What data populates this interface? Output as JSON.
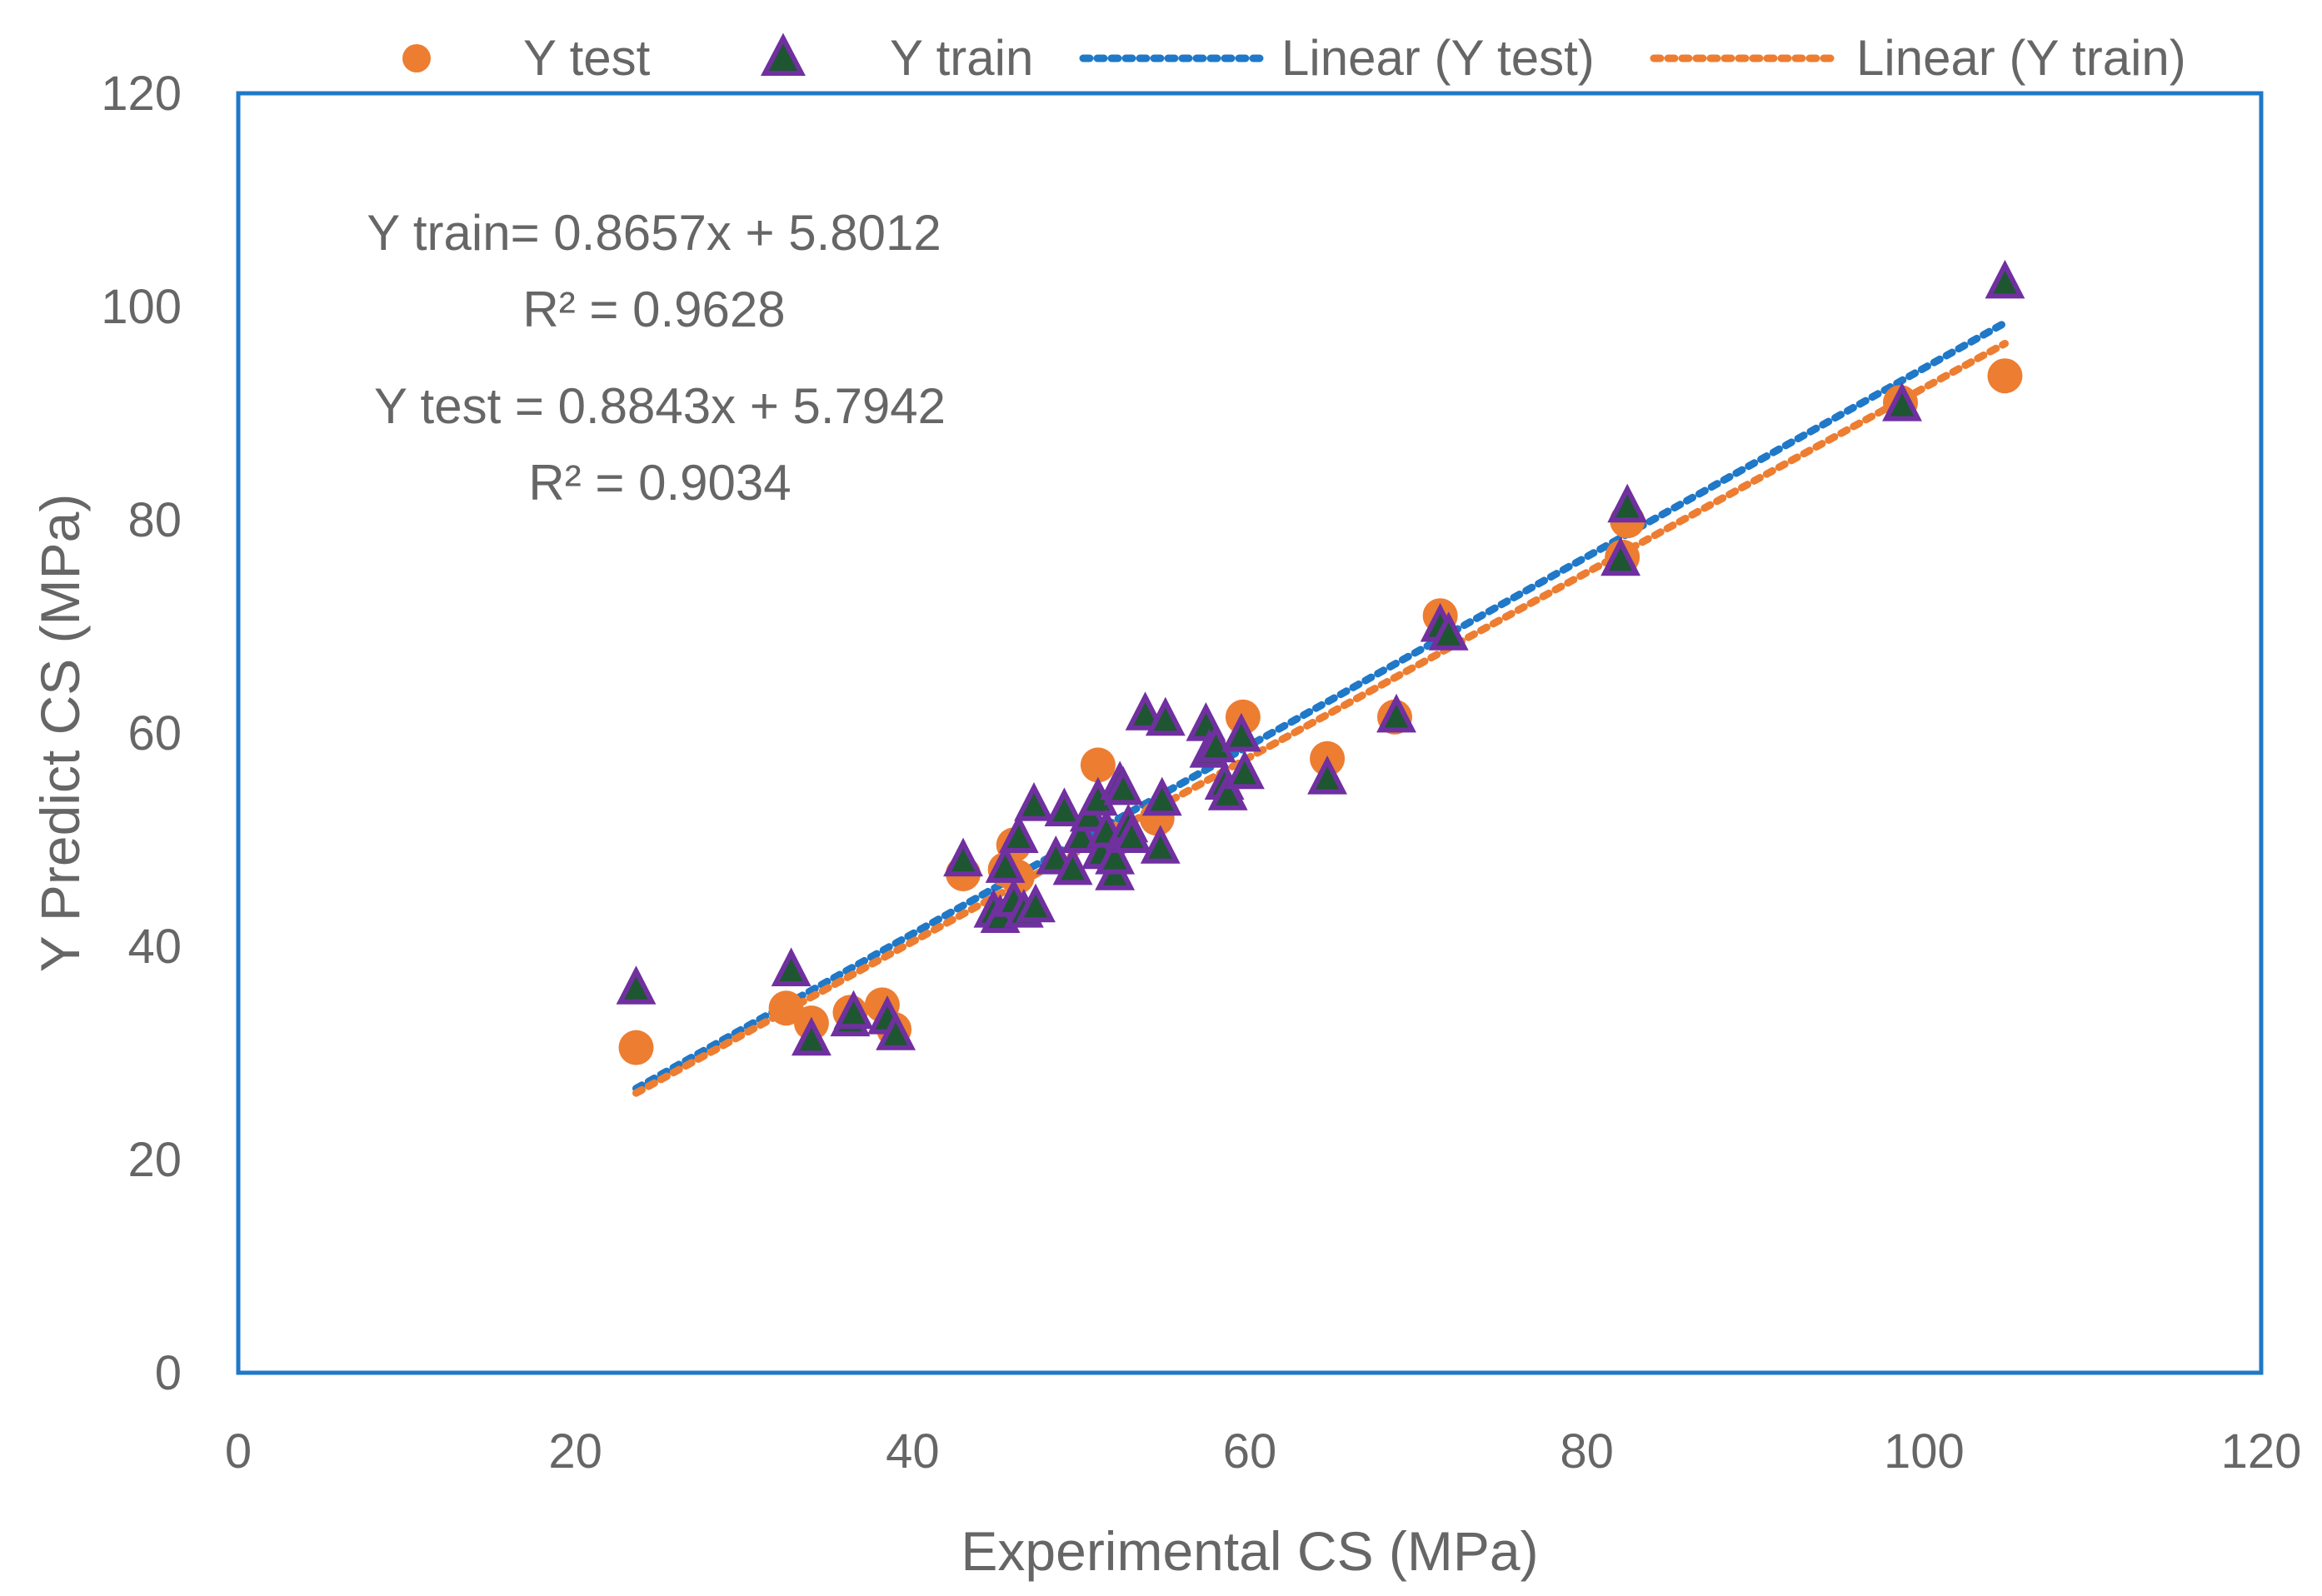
{
  "chart_data": {
    "type": "scatter",
    "title": "",
    "xlabel": "Experimental CS (MPa)",
    "ylabel": "Y Predict CS (MPa)",
    "xlim": [
      0,
      120
    ],
    "ylim": [
      0,
      120
    ],
    "xticks": [
      "0",
      "20",
      "40",
      "60",
      "80",
      "100",
      "120"
    ],
    "yticks": [
      "0",
      "20",
      "40",
      "60",
      "80",
      "100",
      "120"
    ],
    "grid": false,
    "legend_position": "top",
    "legend": [
      "Y test",
      "Y train",
      "Linear (Y test)",
      "Linear (Y train)"
    ],
    "colors": {
      "test_marker": "#ED7D31",
      "train_marker_fill": "#1E5631",
      "train_marker_edge": "#7030A0",
      "test_trend": "#1F78C8",
      "train_trend": "#ED7D31",
      "plot_border": "#1F78C8"
    },
    "series": [
      {
        "name": "Y test",
        "marker": "circle",
        "x": [
          23.6,
          32.5,
          34.0,
          36.3,
          38.2,
          38.9,
          43.0,
          45.5,
          46.2,
          46.0,
          51.0,
          52.0,
          54.5,
          59.6,
          64.6,
          68.6,
          71.3,
          82.1,
          82.4,
          98.6,
          104.8
        ],
        "y": [
          30.5,
          34.2,
          32.8,
          33.8,
          34.5,
          32.2,
          46.8,
          47.2,
          46.5,
          49.5,
          57.0,
          50.0,
          52.0,
          61.5,
          57.6,
          61.5,
          71.0,
          76.5,
          79.9,
          91.0,
          93.5
        ]
      },
      {
        "name": "Y train",
        "marker": "triangle",
        "x": [
          23.6,
          32.8,
          34.0,
          36.3,
          36.5,
          38.5,
          39.0,
          43.0,
          44.8,
          45.2,
          45.5,
          46.0,
          46.3,
          46.6,
          47.2,
          47.3,
          48.5,
          49.0,
          49.5,
          50.0,
          50.5,
          51.0,
          51.2,
          51.5,
          52.0,
          52.0,
          52.3,
          52.5,
          52.8,
          53.0,
          53.8,
          54.7,
          54.8,
          55.0,
          57.4,
          57.6,
          58.0,
          58.5,
          58.7,
          59.5,
          59.7,
          64.6,
          68.7,
          71.3,
          71.8,
          82.0,
          82.4,
          98.7,
          104.8
        ],
        "y": [
          35.8,
          37.5,
          31.0,
          32.8,
          33.5,
          33.0,
          31.5,
          47.8,
          43.0,
          42.5,
          47.2,
          44.0,
          50.0,
          43.0,
          53.0,
          43.5,
          48.0,
          52.5,
          47.0,
          50.0,
          52.0,
          53.5,
          48.5,
          50.5,
          46.5,
          48.0,
          55.0,
          54.5,
          51.0,
          50.0,
          61.5,
          49.0,
          53.5,
          61.0,
          60.5,
          58.0,
          58.5,
          55.0,
          54.0,
          59.5,
          56.0,
          55.5,
          61.3,
          69.8,
          69.0,
          76.0,
          81.0,
          90.5,
          102.0
        ]
      }
    ],
    "trendlines": [
      {
        "name": "Linear (Y test)",
        "slope": 0.8843,
        "intercept": 5.7942,
        "x_range": [
          23.6,
          104.8
        ]
      },
      {
        "name": "Linear (Y train)",
        "slope": 0.8657,
        "intercept": 5.8012,
        "x_range": [
          23.6,
          104.8
        ]
      }
    ],
    "annotations": {
      "train_equation": "Y  train= 0.8657x + 5.8012",
      "train_r2": "R² = 0.9628",
      "test_equation": "Y test = 0.8843x + 5.7942",
      "test_r2": "R² = 0.9034"
    }
  }
}
